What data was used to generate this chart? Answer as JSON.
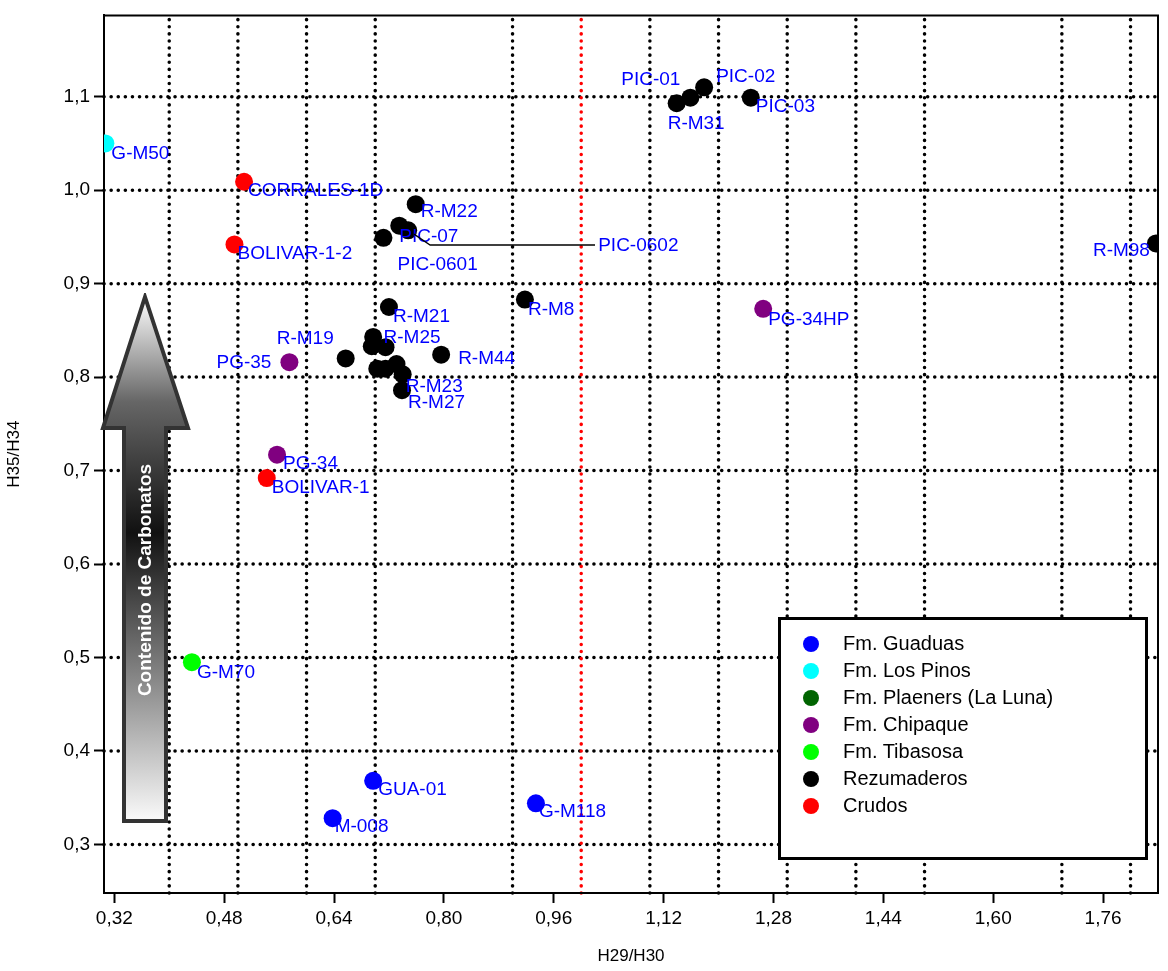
{
  "chart_data": {
    "type": "scatter",
    "xlabel": "H29/H30",
    "ylabel": "H35/H34",
    "marker": "circle",
    "grid": true,
    "legend": "bottom right",
    "xlim": [
      0.305,
      1.84
    ],
    "ylim": [
      0.248,
      1.187
    ],
    "xticks": [
      {
        "value": 0.32,
        "label": "0,32"
      },
      {
        "value": 0.4,
        "label": null
      },
      {
        "value": 0.48,
        "label": "0,48"
      },
      {
        "value": 0.5,
        "label": null
      },
      {
        "value": 0.6,
        "label": null
      },
      {
        "value": 0.64,
        "label": "0,64"
      },
      {
        "value": 0.7,
        "label": null
      },
      {
        "value": 0.8,
        "label": "0,80"
      },
      {
        "value": 0.9,
        "label": null
      },
      {
        "value": 0.96,
        "label": "0,96"
      },
      {
        "value": 1.1,
        "label": null
      },
      {
        "value": 1.12,
        "label": "1,12"
      },
      {
        "value": 1.2,
        "label": null
      },
      {
        "value": 1.28,
        "label": "1,28"
      },
      {
        "value": 1.3,
        "label": null
      },
      {
        "value": 1.4,
        "label": null
      },
      {
        "value": 1.44,
        "label": "1,44"
      },
      {
        "value": 1.5,
        "label": null
      },
      {
        "value": 1.6,
        "label": "1,60"
      },
      {
        "value": 1.7,
        "label": null
      },
      {
        "value": 1.76,
        "label": "1,76"
      },
      {
        "value": 1.8,
        "label": null
      }
    ],
    "yticks": [
      {
        "value": 0.3,
        "label": "0,3"
      },
      {
        "value": 0.4,
        "label": "0,4"
      },
      {
        "value": 0.5,
        "label": "0,5"
      },
      {
        "value": 0.6,
        "label": "0,6"
      },
      {
        "value": 0.7,
        "label": "0,7"
      },
      {
        "value": 0.8,
        "label": "0,8"
      },
      {
        "value": 0.9,
        "label": "0,9"
      },
      {
        "value": 1.0,
        "label": "1,0"
      },
      {
        "value": 1.1,
        "label": "1,1"
      }
    ],
    "ref_lines": [
      {
        "axis": "x",
        "value": 1.0,
        "color": "#ff0000",
        "line_style": "dotted"
      }
    ],
    "series": [
      {
        "name": "Fm. Guaduas",
        "color": "#0000ff",
        "x": [
          0.697,
          0.638,
          0.934
        ],
        "values": [
          0.368,
          0.328,
          0.344
        ]
      },
      {
        "name": "Fm. Los Pinos",
        "color": "#00ffff",
        "x": [
          0.307
        ],
        "values": [
          1.05
        ]
      },
      {
        "name": "Fm. Plaeners (La Luna)",
        "color": "#006400"
      },
      {
        "name": "Fm. Chipaque",
        "color": "#800080",
        "x": [
          0.575,
          0.557,
          1.265
        ],
        "values": [
          0.816,
          0.717,
          0.873
        ]
      },
      {
        "name": "Fm. Tibasosa",
        "color": "#00ff00",
        "x": [
          0.433
        ],
        "values": [
          0.495
        ]
      },
      {
        "name": "Rezumaderos",
        "color": "#000000",
        "x": [
          0.759,
          0.735,
          0.712,
          0.748,
          0.72,
          0.918,
          0.657,
          0.697,
          0.695,
          0.715,
          0.796,
          0.703,
          0.715,
          0.731,
          0.74,
          0.739,
          1.139,
          1.159,
          1.179,
          1.247,
          1.837
        ],
        "values": [
          0.985,
          0.962,
          0.949,
          0.957,
          0.875,
          0.883,
          0.82,
          0.843,
          0.833,
          0.832,
          0.824,
          0.809,
          0.809,
          0.814,
          0.803,
          0.786,
          1.093,
          1.099,
          1.11,
          1.099,
          0.943
        ]
      },
      {
        "name": "Crudos",
        "color": "#ff0000",
        "x": [
          0.509,
          0.495,
          0.542
        ],
        "values": [
          1.009,
          0.942,
          0.692
        ]
      }
    ],
    "annotations": [
      "Contenido de Carbonatos",
      {
        "text": "G-M50",
        "x": 0.307,
        "y": 1.05
      },
      {
        "text": "CORRALES-1D",
        "x": 0.509,
        "y": 1.009
      },
      {
        "text": "BOLIVAR-1-2",
        "x": 0.495,
        "y": 0.942
      },
      {
        "text": "R-M22",
        "x": 0.759,
        "y": 0.985
      },
      {
        "text": "PIC-07",
        "x": 0.735,
        "y": 0.962
      },
      {
        "text": "PIC-0601",
        "x": 0.712,
        "y": 0.949
      },
      {
        "text": "PIC-0602",
        "x": 0.748,
        "y": 0.957
      },
      {
        "text": "R-M21",
        "x": 0.72,
        "y": 0.875
      },
      {
        "text": "R-M8",
        "x": 0.918,
        "y": 0.883
      },
      {
        "text": "R-M19",
        "x": 0.657,
        "y": 0.82
      },
      {
        "text": "R-M25",
        "x": 0.715,
        "y": 0.832
      },
      {
        "text": "R-M44",
        "x": 0.796,
        "y": 0.824
      },
      {
        "text": "R-M23",
        "x": 0.74,
        "y": 0.803
      },
      {
        "text": "R-M27",
        "x": 0.739,
        "y": 0.786
      },
      {
        "text": "PG-35",
        "x": 0.575,
        "y": 0.816
      },
      {
        "text": "PG-34",
        "x": 0.557,
        "y": 0.717
      },
      {
        "text": "BOLIVAR-1",
        "x": 0.542,
        "y": 0.692
      },
      {
        "text": "G-M70",
        "x": 0.433,
        "y": 0.495
      },
      {
        "text": "GUA-01",
        "x": 0.697,
        "y": 0.368
      },
      {
        "text": "M-008",
        "x": 0.638,
        "y": 0.328
      },
      {
        "text": "G-M118",
        "x": 0.934,
        "y": 0.344
      },
      {
        "text": "PIC-01",
        "x": 1.159,
        "y": 1.099
      },
      {
        "text": "R-M31",
        "x": 1.139,
        "y": 1.093
      },
      {
        "text": "PIC-02",
        "x": 1.179,
        "y": 1.11
      },
      {
        "text": "PIC-03",
        "x": 1.247,
        "y": 1.099
      },
      {
        "text": "R-M98",
        "x": 1.837,
        "y": 0.943
      },
      {
        "text": "PG-34HP",
        "x": 1.265,
        "y": 0.873
      }
    ]
  }
}
